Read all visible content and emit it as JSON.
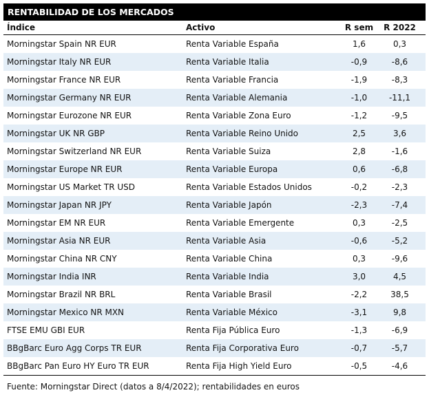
{
  "header": {
    "title": "RENTABILIDAD DE LOS MERCADOS"
  },
  "table": {
    "columns": [
      "Índice",
      "Activo",
      "R sem",
      "R 2022"
    ],
    "rows": [
      [
        "Morningstar Spain NR EUR",
        "Renta Variable España",
        "1,6",
        "0,3"
      ],
      [
        "Morningstar Italy NR EUR",
        "Renta Variable Italia",
        "-0,9",
        "-8,6"
      ],
      [
        "Morningstar France NR EUR",
        "Renta Variable Francia",
        "-1,9",
        "-8,3"
      ],
      [
        "Morningstar Germany NR EUR",
        "Renta Variable Alemania",
        "-1,0",
        "-11,1"
      ],
      [
        "Morningstar Eurozone NR EUR",
        "Renta Variable Zona Euro",
        "-1,2",
        "-9,5"
      ],
      [
        "Morningstar UK NR GBP",
        "Renta Variable Reino Unido",
        "2,5",
        "3,6"
      ],
      [
        "Morningstar Switzerland NR EUR",
        "Renta Variable Suiza",
        "2,8",
        "-1,6"
      ],
      [
        "Morningstar Europe NR EUR",
        "Renta Variable Europa",
        "0,6",
        "-6,8"
      ],
      [
        "Morningstar US Market TR USD",
        "Renta Variable Estados Unidos",
        "-0,2",
        "-2,3"
      ],
      [
        "Morningstar Japan NR JPY",
        "Renta Variable Japón",
        "-2,3",
        "-7,4"
      ],
      [
        "Morningstar EM NR EUR",
        "Renta Variable Emergente",
        "0,3",
        "-2,5"
      ],
      [
        "Morningstar Asia NR EUR",
        "Renta Variable Asia",
        "-0,6",
        "-5,2"
      ],
      [
        "Morningstar China NR CNY",
        "Renta Variable China",
        "0,3",
        "-9,6"
      ],
      [
        "Morningstar India INR",
        "Renta Variable India",
        "3,0",
        "4,5"
      ],
      [
        "Morningstar Brazil NR BRL",
        "Renta Variable Brasil",
        "-2,2",
        "38,5"
      ],
      [
        "Morningstar Mexico NR MXN",
        "Renta Variable México",
        "-3,1",
        "9,8"
      ],
      [
        "FTSE EMU GBI EUR",
        "Renta Fija Pública Euro",
        "-1,3",
        "-6,9"
      ],
      [
        "BBgBarc Euro Agg Corps TR EUR",
        "Renta Fija Corporativa Euro",
        "-0,7",
        "-5,7"
      ],
      [
        "BBgBarc Pan Euro HY Euro TR EUR",
        "Renta Fija High Yield Euro",
        "-0,5",
        "-4,6"
      ]
    ]
  },
  "footer": {
    "note": "Fuente: Morningstar Direct (datos a 8/4/2022); rentabilidades en euros"
  }
}
